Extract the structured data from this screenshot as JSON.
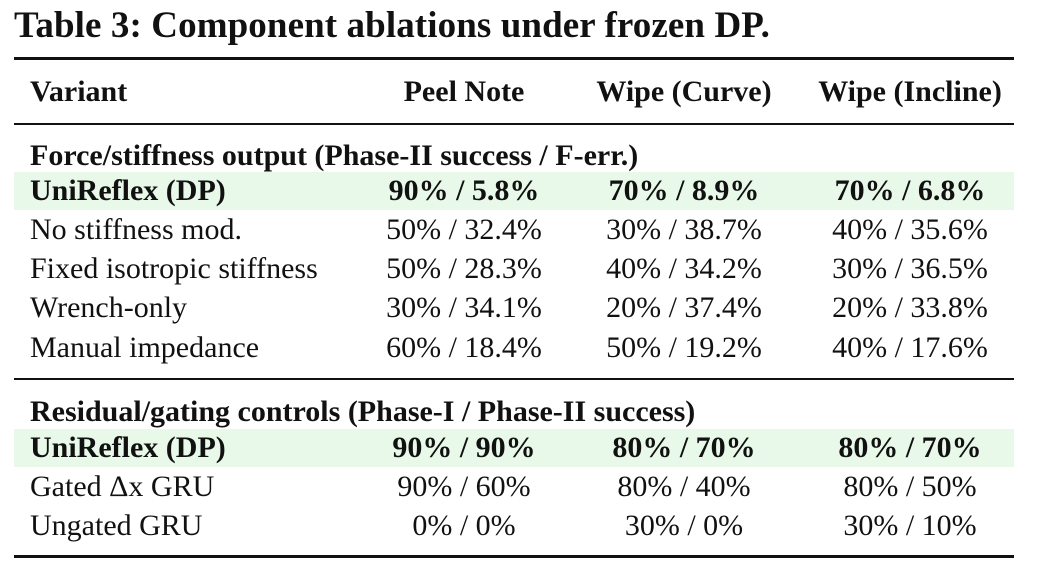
{
  "caption": "Table 3: Component ablations under frozen DP.",
  "columns": [
    "Variant",
    "Peel Note",
    "Wipe (Curve)",
    "Wipe (Incline)"
  ],
  "sections": [
    {
      "title": "Force/stiffness output (Phase-II success / F-err.)",
      "rows": [
        {
          "variant": "UniReflex (DP)",
          "peel": "90% / 5.8%",
          "curve": "70% / 8.9%",
          "incline": "70% / 6.8%",
          "highlight": true
        },
        {
          "variant": "No stiffness mod.",
          "peel": "50% / 32.4%",
          "curve": "30% / 38.7%",
          "incline": "40% / 35.6%"
        },
        {
          "variant": "Fixed isotropic stiffness",
          "peel": "50% / 28.3%",
          "curve": "40% / 34.2%",
          "incline": "30% / 36.5%"
        },
        {
          "variant": "Wrench-only",
          "peel": "30% / 34.1%",
          "curve": "20% / 37.4%",
          "incline": "20% / 33.8%"
        },
        {
          "variant": "Manual impedance",
          "peel": "60% / 18.4%",
          "curve": "50% / 19.2%",
          "incline": "40% / 17.6%"
        }
      ]
    },
    {
      "title": "Residual/gating controls (Phase-I / Phase-II success)",
      "rows": [
        {
          "variant": "UniReflex (DP)",
          "peel": "90% / 90%",
          "curve": "80% / 70%",
          "incline": "80% / 70%",
          "highlight": true
        },
        {
          "variant": "Gated Δx GRU",
          "peel": "90% / 60%",
          "curve": "80% / 40%",
          "incline": "80% / 50%"
        },
        {
          "variant": "Ungated GRU",
          "peel": "0% / 0%",
          "curve": "30% / 0%",
          "incline": "30% / 10%"
        }
      ]
    }
  ],
  "colors": {
    "highlight": "#e8f9e9",
    "text": "#111111",
    "rule": "#111111"
  }
}
